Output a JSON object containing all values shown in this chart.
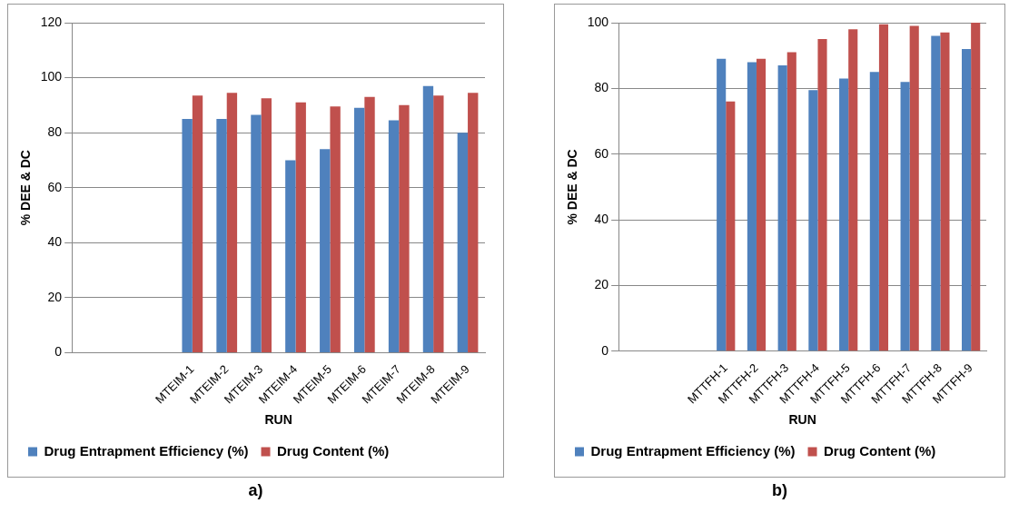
{
  "chart_data": [
    {
      "type": "bar",
      "xlabel": "RUN",
      "ylabel": "% DEE & DC",
      "categories": [
        null,
        null,
        null,
        "MTEIM-1",
        "MTEIM-2",
        "MTEIM-3",
        "MTEIM-4",
        "MTEIM-5",
        "MTEIM-6",
        "MTEIM-7",
        "MTEIM-8",
        "MTEIM-9"
      ],
      "series": [
        {
          "name": "Drug Entrapment Efficiency (%)",
          "color": "#4f81bd",
          "values": [
            null,
            null,
            null,
            85,
            85,
            86.5,
            70,
            74,
            89,
            84.5,
            97,
            80
          ]
        },
        {
          "name": "Drug Content (%)",
          "color": "#c0504d",
          "values": [
            null,
            null,
            null,
            93.5,
            94.5,
            92.5,
            91,
            89.5,
            93,
            90,
            93.5,
            94.5
          ]
        }
      ],
      "ylim": [
        0,
        120
      ],
      "yticks": [
        0,
        20,
        40,
        60,
        80,
        100,
        120
      ],
      "grid": "y",
      "legend": "bottom",
      "annotations": [
        "a)"
      ]
    },
    {
      "type": "bar",
      "xlabel": "RUN",
      "ylabel": "% DEE & DC",
      "categories": [
        null,
        null,
        null,
        "MTTFH-1",
        "MTTFH-2",
        "MTTFH-3",
        "MTTFH-4",
        "MTTFH-5",
        "MTTFH-6",
        "MTTFH-7",
        "MTTFH-8",
        "MTTFH-9"
      ],
      "series": [
        {
          "name": "Drug Entrapment Efficiency (%)",
          "color": "#4f81bd",
          "values": [
            null,
            null,
            null,
            89,
            88,
            87,
            79.5,
            83,
            85,
            82,
            96,
            92
          ]
        },
        {
          "name": "Drug Content (%)",
          "color": "#c0504d",
          "values": [
            null,
            null,
            null,
            76,
            89,
            91,
            95,
            98,
            99.5,
            99,
            97,
            100
          ]
        }
      ],
      "ylim": [
        0,
        100
      ],
      "yticks": [
        0,
        20,
        40,
        60,
        80,
        100
      ],
      "grid": "y",
      "legend": "bottom",
      "annotations": [
        "b)"
      ]
    }
  ]
}
